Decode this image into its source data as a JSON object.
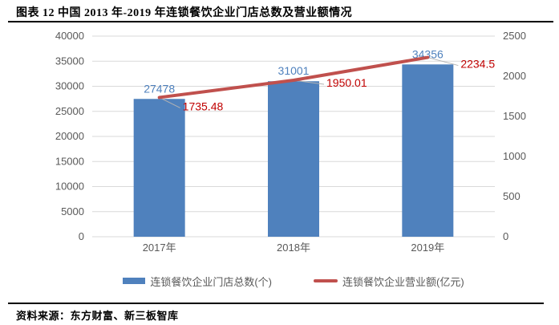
{
  "header": {
    "title": "图表 12 中国 2013 年-2019 年连锁餐饮企业门店总数及营业额情况"
  },
  "footer": {
    "source": "资料来源：东方财富、新三板智库"
  },
  "colors": {
    "bar": "#4F81BD",
    "bar_label": "#4F81BD",
    "line": "#C0504D",
    "line_label": "#C00000",
    "axis_text": "#595959",
    "gridline": "#D9D9D9",
    "leader": "#B3B3B3"
  },
  "chart_data": {
    "type": "bar+line",
    "categories": [
      "2017年",
      "2018年",
      "2019年"
    ],
    "series": [
      {
        "name": "连锁餐饮企业门店总数(个)",
        "type": "bar",
        "axis": "left",
        "values": [
          27478,
          31001,
          34356
        ]
      },
      {
        "name": "连锁餐饮企业营业额(亿元)",
        "type": "line",
        "axis": "right",
        "values": [
          1735.48,
          1950.01,
          2234.5
        ]
      }
    ],
    "left_axis": {
      "min": 0,
      "max": 40000,
      "ticks": [
        "0",
        "5000",
        "10000",
        "15000",
        "20000",
        "25000",
        "30000",
        "35000",
        "40000"
      ]
    },
    "right_axis": {
      "min": 0,
      "max": 2500,
      "ticks": [
        "0",
        "500",
        "1000",
        "1500",
        "2000",
        "2500"
      ]
    },
    "grid": true,
    "legend_position": "bottom"
  }
}
